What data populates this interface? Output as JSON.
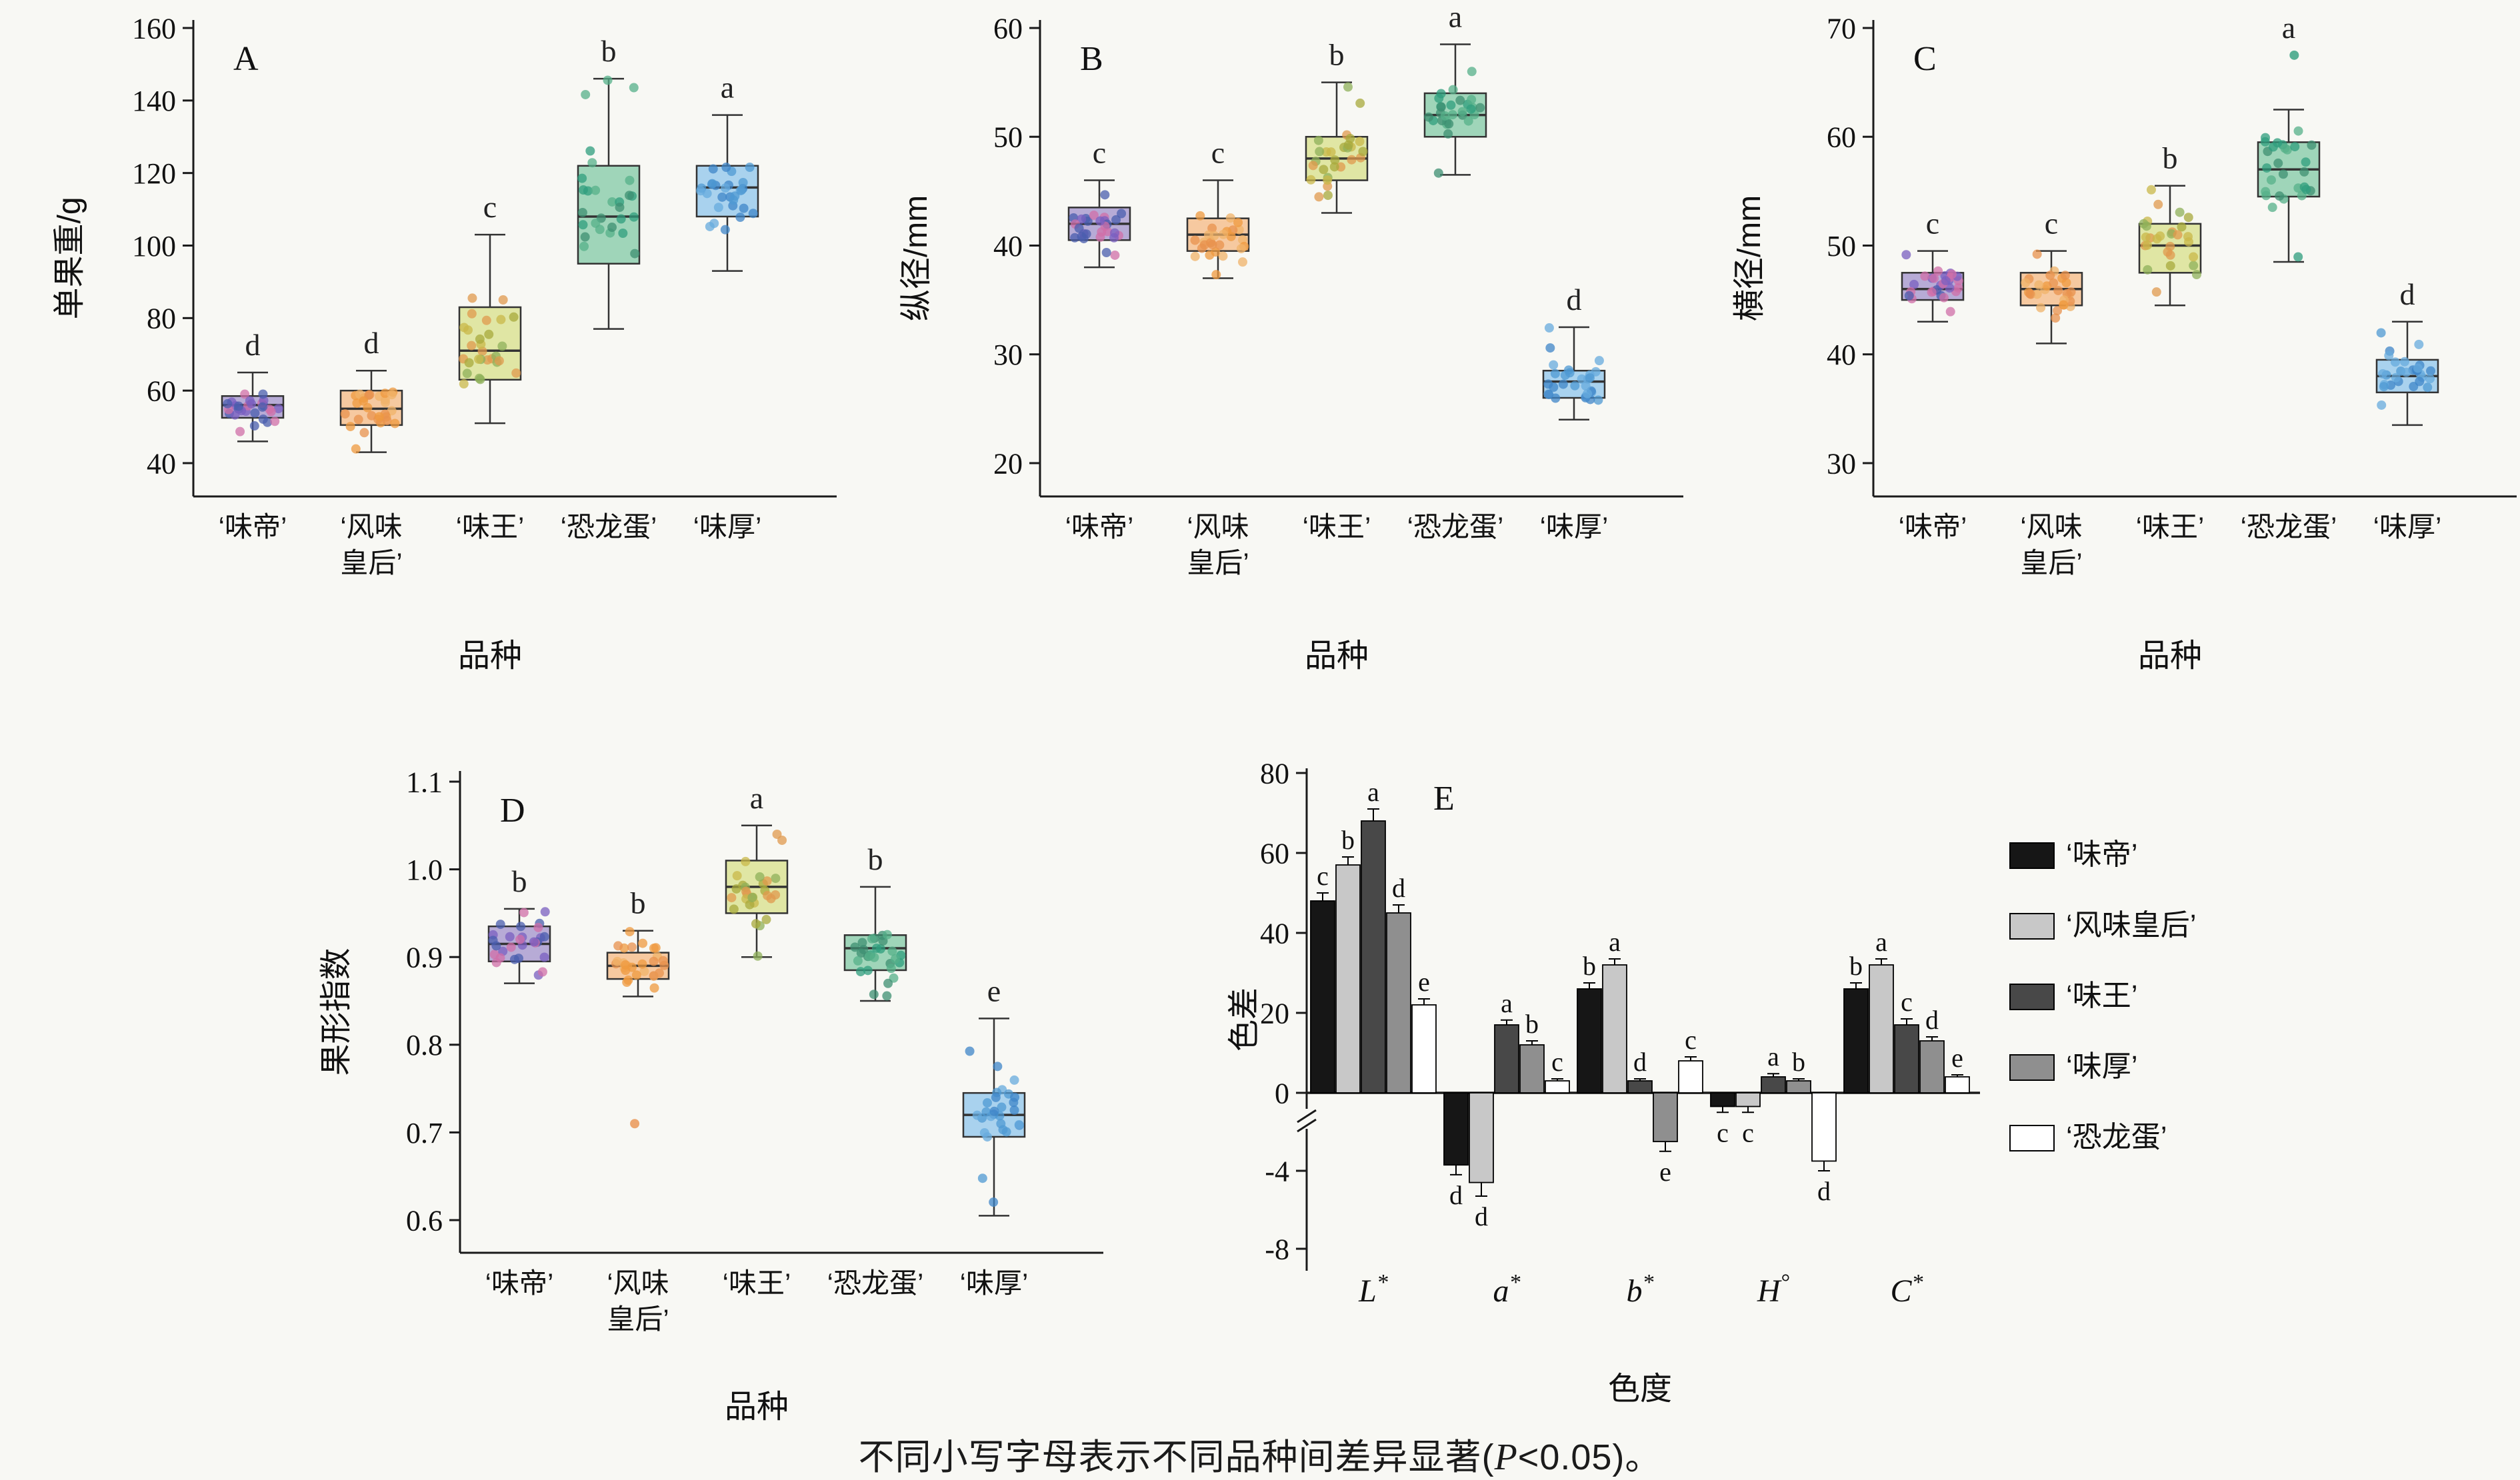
{
  "page": {
    "background": "#f8f8f4",
    "caption": {
      "pre": "不同小写字母表示不同品种间差异显著(",
      "italic": "P",
      "post": "<0.05)。"
    }
  },
  "varieties": {
    "‘味帝’": {
      "box_fill": "#b7abd6",
      "dot_colors": [
        "#4a5dae",
        "#7a5fc0",
        "#d06fa8"
      ]
    },
    "‘风味皇后’": {
      "box_fill": "#f6c9a0",
      "dot_colors": [
        "#e8914e",
        "#ef9a3f",
        "#f0b36a"
      ]
    },
    "‘味王’": {
      "box_fill": "#e0e6a4",
      "dot_colors": [
        "#a8a93c",
        "#c9b84a",
        "#e09a4e",
        "#8fb05a"
      ]
    },
    "‘恐龙蛋’": {
      "box_fill": "#9fd5b9",
      "dot_colors": [
        "#2f9e7d",
        "#3d8f71",
        "#56b089"
      ]
    },
    "‘味厚’": {
      "box_fill": "#a9d2ee",
      "dot_colors": [
        "#4f99d3",
        "#3f85c8",
        "#67abdd"
      ]
    }
  },
  "chart_data": [
    {
      "id": "A",
      "type": "boxplot",
      "panel_label": "A",
      "ylabel": "单果重/g",
      "xlabel": "品种",
      "yticks": [
        40,
        60,
        80,
        100,
        120,
        140,
        160
      ],
      "ytick_labels": [
        "40",
        "60",
        "80",
        "100",
        "120",
        "140",
        "160"
      ],
      "categories": [
        "‘味帝’",
        "‘风味\n皇后’",
        "‘味王’",
        "‘恐龙蛋’",
        "‘味厚’"
      ],
      "groups": [
        {
          "name": "‘味帝’",
          "box": [
            46,
            52.5,
            56,
            58.5,
            65
          ],
          "letter": "d",
          "outliers": []
        },
        {
          "name": "‘风味皇后’",
          "box": [
            43,
            50.5,
            55,
            60,
            65.5
          ],
          "letter": "d",
          "outliers": []
        },
        {
          "name": "‘味王’",
          "box": [
            51,
            63,
            71,
            83,
            103
          ],
          "letter": "c",
          "outliers": []
        },
        {
          "name": "‘恐龙蛋’",
          "box": [
            77,
            95,
            108,
            122,
            146
          ],
          "letter": "b",
          "outliers": []
        },
        {
          "name": "‘味厚’",
          "box": [
            93,
            108,
            116,
            122,
            136
          ],
          "letter": "a",
          "outliers": []
        }
      ]
    },
    {
      "id": "B",
      "type": "boxplot",
      "panel_label": "B",
      "ylabel": "纵径/mm",
      "xlabel": "品种",
      "yticks": [
        20,
        30,
        40,
        50,
        60
      ],
      "ytick_labels": [
        "20",
        "30",
        "40",
        "50",
        "60"
      ],
      "categories": [
        "‘味帝’",
        "‘风味\n皇后’",
        "‘味王’",
        "‘恐龙蛋’",
        "‘味厚’"
      ],
      "groups": [
        {
          "name": "‘味帝’",
          "box": [
            38,
            40.5,
            42,
            43.5,
            46
          ],
          "letter": "c",
          "outliers": []
        },
        {
          "name": "‘风味皇后’",
          "box": [
            37,
            39.5,
            41,
            42.5,
            46
          ],
          "letter": "c",
          "outliers": []
        },
        {
          "name": "‘味王’",
          "box": [
            43,
            46,
            48,
            50,
            55
          ],
          "letter": "b",
          "outliers": []
        },
        {
          "name": "‘恐龙蛋’",
          "box": [
            46.5,
            50,
            52,
            54,
            58.5
          ],
          "letter": "a",
          "outliers": []
        },
        {
          "name": "‘味厚’",
          "box": [
            24,
            26,
            27.5,
            28.5,
            32.5
          ],
          "letter": "d",
          "outliers": []
        }
      ]
    },
    {
      "id": "C",
      "type": "boxplot",
      "panel_label": "C",
      "ylabel": "横径/mm",
      "xlabel": "品种",
      "yticks": [
        30,
        40,
        50,
        60,
        70
      ],
      "ytick_labels": [
        "30",
        "40",
        "50",
        "60",
        "70"
      ],
      "categories": [
        "‘味帝’",
        "‘风味\n皇后’",
        "‘味王’",
        "‘恐龙蛋’",
        "‘味厚’"
      ],
      "groups": [
        {
          "name": "‘味帝’",
          "box": [
            43,
            45,
            46,
            47.5,
            49.5
          ],
          "letter": "c",
          "outliers": []
        },
        {
          "name": "‘风味皇后’",
          "box": [
            41,
            44.5,
            46,
            47.5,
            49.5
          ],
          "letter": "c",
          "outliers": []
        },
        {
          "name": "‘味王’",
          "box": [
            44.5,
            47.5,
            50,
            52,
            55.5
          ],
          "letter": "b",
          "outliers": []
        },
        {
          "name": "‘恐龙蛋’",
          "box": [
            48.5,
            54.5,
            57,
            59.5,
            62.5
          ],
          "letter": "a",
          "outliers": [
            67.5
          ]
        },
        {
          "name": "‘味厚’",
          "box": [
            33.5,
            36.5,
            38,
            39.5,
            43
          ],
          "letter": "d",
          "outliers": []
        }
      ]
    },
    {
      "id": "D",
      "type": "boxplot",
      "panel_label": "D",
      "ylabel": "果形指数",
      "xlabel": "品种",
      "yticks": [
        0.6,
        0.7,
        0.8,
        0.9,
        1.0,
        1.1
      ],
      "ytick_labels": [
        "0.6",
        "0.7",
        "0.8",
        "0.9",
        "1.0",
        "1.1"
      ],
      "categories": [
        "‘味帝’",
        "‘风味\n皇后’",
        "‘味王’",
        "‘恐龙蛋’",
        "‘味厚’"
      ],
      "groups": [
        {
          "name": "‘味帝’",
          "box": [
            0.87,
            0.895,
            0.915,
            0.935,
            0.955
          ],
          "letter": "b",
          "outliers": []
        },
        {
          "name": "‘风味皇后’",
          "box": [
            0.855,
            0.875,
            0.89,
            0.905,
            0.93
          ],
          "letter": "b",
          "outliers": [
            0.71
          ]
        },
        {
          "name": "‘味王’",
          "box": [
            0.9,
            0.95,
            0.98,
            1.01,
            1.05
          ],
          "letter": "a",
          "outliers": []
        },
        {
          "name": "‘恐龙蛋’",
          "box": [
            0.85,
            0.885,
            0.91,
            0.925,
            0.98
          ],
          "letter": "b",
          "outliers": []
        },
        {
          "name": "‘味厚’",
          "box": [
            0.605,
            0.695,
            0.72,
            0.745,
            0.83
          ],
          "letter": "e",
          "outliers": []
        }
      ]
    },
    {
      "id": "E",
      "type": "grouped-bar-broken-axis",
      "panel_label": "E",
      "ylabel": "色差",
      "xlabel": "色度",
      "yticks_pos": [
        0,
        20,
        40,
        60,
        80
      ],
      "ytick_pos_labels": [
        "0",
        "20",
        "40",
        "60",
        "80"
      ],
      "yticks_neg": [
        -4,
        -8
      ],
      "ytick_neg_labels": [
        "-4",
        "-8"
      ],
      "categories": [
        {
          "b": "L",
          "s": "*"
        },
        {
          "b": "a",
          "s": "*"
        },
        {
          "b": "b",
          "s": "*"
        },
        {
          "b": "H",
          "s": "°"
        },
        {
          "b": "C",
          "s": "*"
        }
      ],
      "series": [
        {
          "name": "‘味帝’",
          "color": "#161616",
          "values": [
            48,
            -3.7,
            26,
            -0.7,
            26
          ],
          "errors": [
            2,
            0.5,
            1.5,
            0.3,
            1.5
          ],
          "letters": [
            "c",
            "d",
            "b",
            "c",
            "b"
          ]
        },
        {
          "name": "‘风味皇后’",
          "color": "#c8c8c8",
          "values": [
            57,
            -4.6,
            32,
            -0.7,
            32
          ],
          "errors": [
            2,
            0.7,
            1.5,
            0.3,
            1.5
          ],
          "letters": [
            "b",
            "d",
            "a",
            "c",
            "a"
          ]
        },
        {
          "name": "‘味王’",
          "color": "#484848",
          "values": [
            68,
            17,
            3,
            4,
            17
          ],
          "errors": [
            3,
            1.2,
            0.5,
            0.8,
            1.5
          ],
          "letters": [
            "a",
            "a",
            "d",
            "a",
            "c"
          ]
        },
        {
          "name": "‘味厚’",
          "color": "#8f8f8f",
          "values": [
            45,
            12,
            -2.5,
            3,
            13
          ],
          "errors": [
            2,
            1,
            0.5,
            0.5,
            1
          ],
          "letters": [
            "d",
            "b",
            "e",
            "b",
            "d"
          ]
        },
        {
          "name": "‘恐龙蛋’",
          "color": "#ffffff",
          "values": [
            22,
            3,
            8,
            -3.5,
            4
          ],
          "errors": [
            1.5,
            0.5,
            1,
            0.5,
            0.5
          ],
          "letters": [
            "e",
            "c",
            "c",
            "d",
            "e"
          ]
        }
      ],
      "legend": [
        "‘味帝’",
        "‘风味皇后’",
        "‘味王’",
        "‘味厚’",
        "‘恐龙蛋’"
      ]
    }
  ]
}
